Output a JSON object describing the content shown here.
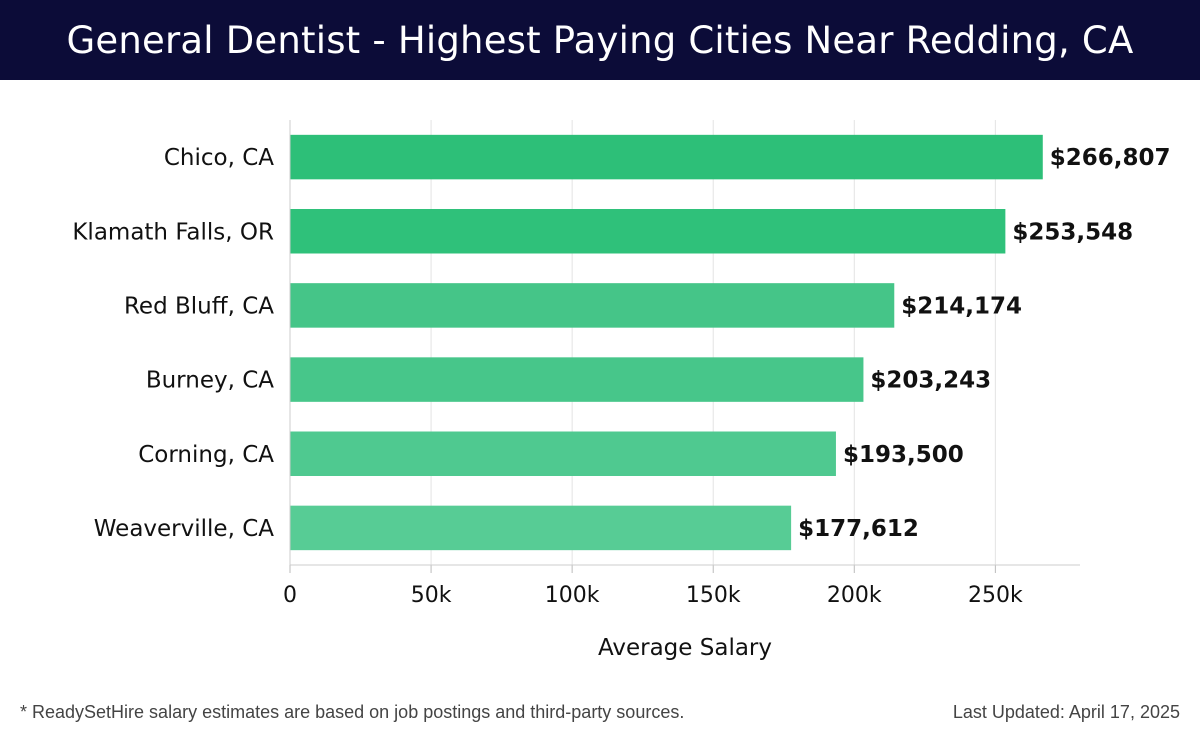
{
  "header": {
    "title": "General Dentist - Highest Paying Cities Near Redding, CA"
  },
  "chart_data": {
    "type": "bar",
    "orientation": "horizontal",
    "title": "General Dentist - Highest Paying Cities Near Redding, CA",
    "xlabel": "Average Salary",
    "ylabel": "",
    "categories": [
      "Chico, CA",
      "Klamath Falls, OR",
      "Red Bluff, CA",
      "Burney, CA",
      "Corning, CA",
      "Weaverville, CA"
    ],
    "values": [
      266807,
      253548,
      214174,
      203243,
      193500,
      177612
    ],
    "value_labels": [
      "$266,807",
      "$253,548",
      "$214,174",
      "$203,243",
      "$193,500",
      "$177,612"
    ],
    "xlim": [
      0,
      280000
    ],
    "xticks": [
      0,
      50000,
      100000,
      150000,
      200000,
      250000
    ],
    "xtick_labels": [
      "0",
      "50k",
      "100k",
      "150k",
      "200k",
      "250k"
    ],
    "grid": true,
    "bar_colors": [
      "#2dbf78",
      "#2fc17a",
      "#45c588",
      "#47c68a",
      "#4fc990",
      "#57cc95"
    ]
  },
  "footer": {
    "note": "* ReadySetHire salary estimates are based on job postings and third-party sources.",
    "updated": "Last Updated: April 17, 2025"
  }
}
